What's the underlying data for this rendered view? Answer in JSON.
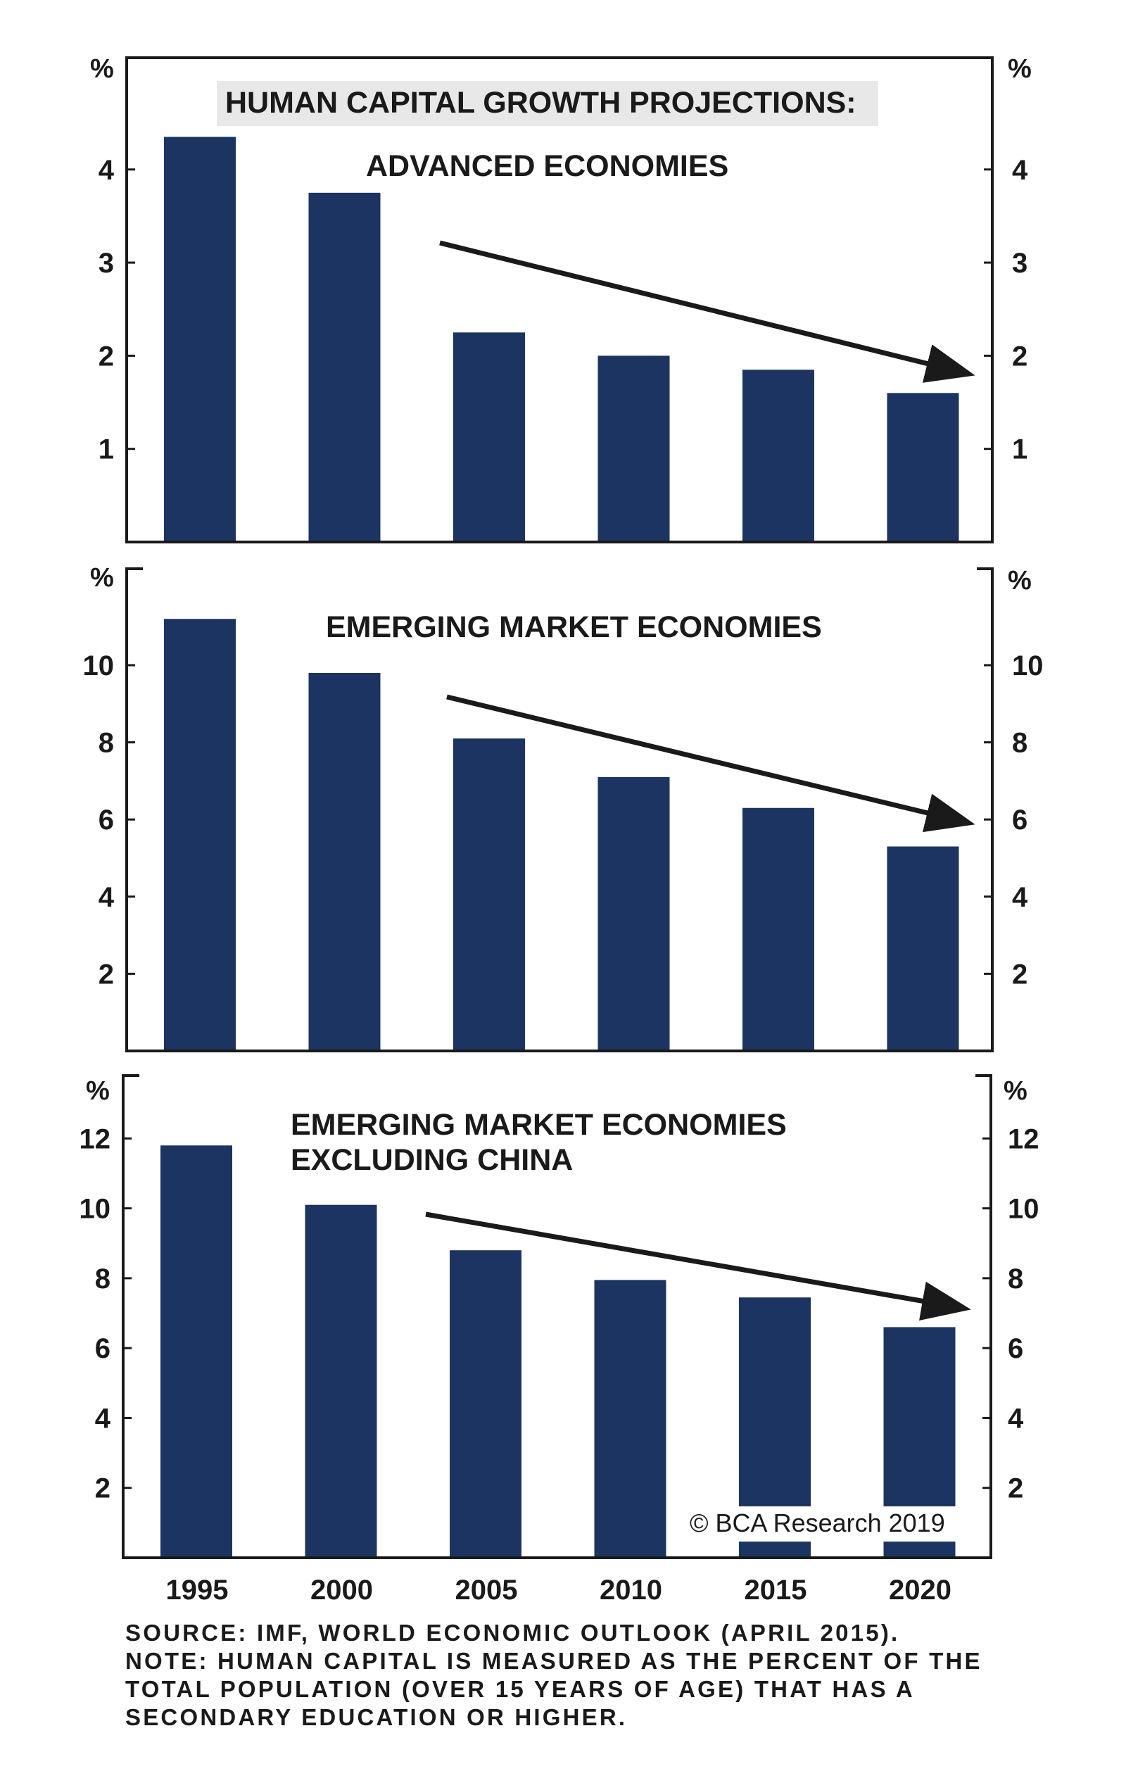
{
  "chart_data": [
    {
      "type": "bar",
      "title": "HUMAN CAPITAL GROWTH PROJECTIONS:",
      "subtitle": "ADVANCED ECONOMIES",
      "categories": [
        "1995",
        "2000",
        "2005",
        "2010",
        "2015",
        "2020"
      ],
      "values": [
        4.35,
        3.75,
        2.25,
        2.0,
        1.85,
        1.6
      ],
      "unit_left": "%",
      "unit_right": "%",
      "yticks": [
        1,
        2,
        3,
        4
      ],
      "ylim": [
        0,
        5.2
      ],
      "trend_arrow": "downward"
    },
    {
      "type": "bar",
      "title": "EMERGING MARKET ECONOMIES",
      "categories": [
        "1995",
        "2000",
        "2005",
        "2010",
        "2015",
        "2020"
      ],
      "values": [
        11.2,
        9.8,
        8.1,
        7.1,
        6.3,
        5.3
      ],
      "unit_left": "%",
      "unit_right": "%",
      "yticks": [
        2,
        4,
        6,
        8,
        10
      ],
      "ylim": [
        0,
        12.5
      ],
      "trend_arrow": "downward"
    },
    {
      "type": "bar",
      "title": "EMERGING MARKET ECONOMIES",
      "subtitle": "EXCLUDING CHINA",
      "categories": [
        "1995",
        "2000",
        "2005",
        "2010",
        "2015",
        "2020"
      ],
      "values": [
        11.8,
        10.1,
        8.8,
        7.95,
        7.45,
        6.6
      ],
      "unit_left": "%",
      "unit_right": "%",
      "yticks": [
        2,
        4,
        6,
        8,
        10,
        12
      ],
      "ylim": [
        0,
        13.8
      ],
      "trend_arrow": "downward"
    }
  ],
  "x_axis_labels": [
    "1995",
    "2000",
    "2005",
    "2010",
    "2015",
    "2020"
  ],
  "copyright": "© BCA Research 2019",
  "footnote": {
    "line1": "SOURCE: IMF, WORLD ECONOMIC OUTLOOK (APRIL 2015).",
    "line2": "NOTE: HUMAN CAPITAL IS MEASURED AS THE PERCENT OF THE",
    "line3": "TOTAL POPULATION (OVER 15 YEARS OF AGE) THAT HAS A",
    "line4": "SECONDARY EDUCATION OR HIGHER."
  },
  "colors": {
    "bar": "#1c3461",
    "axis": "#1a1a1a",
    "title_box": "#e8e8e8",
    "arrow": "#1a1a1a"
  }
}
